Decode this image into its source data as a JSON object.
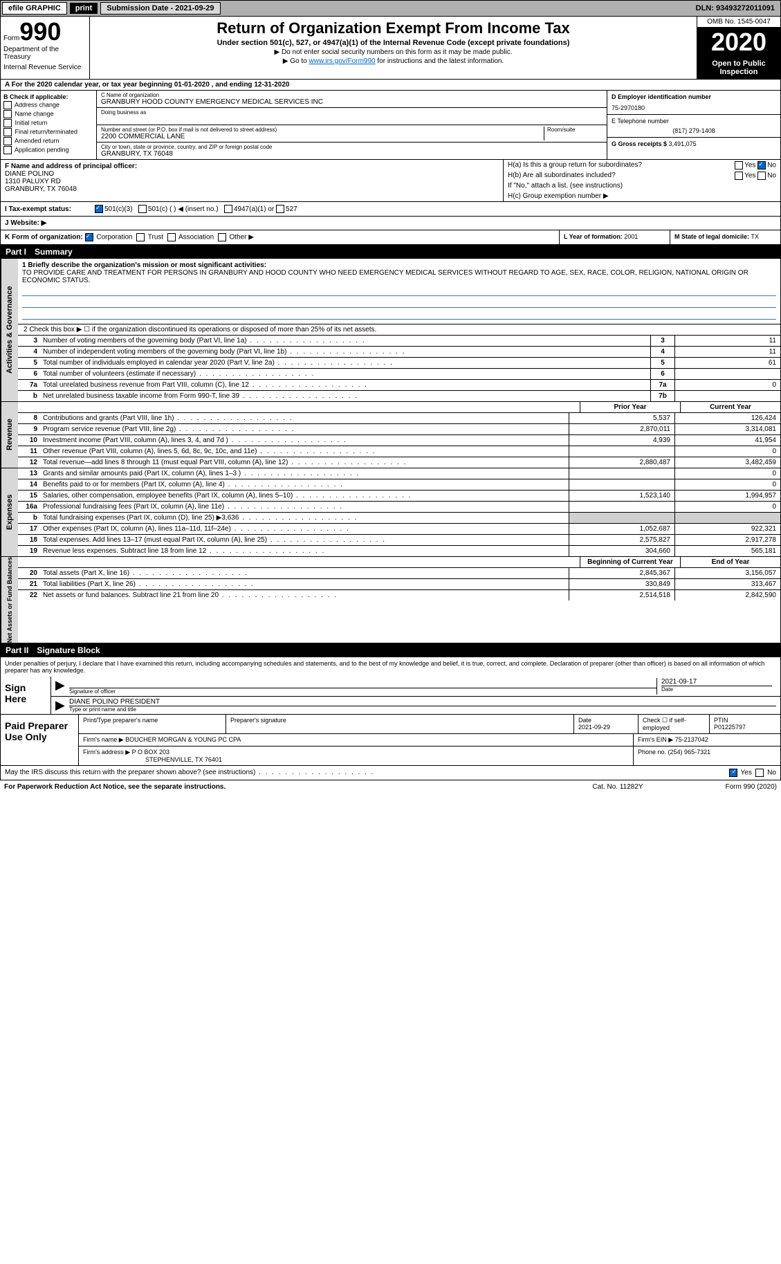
{
  "top": {
    "efile": "efile GRAPHIC",
    "print": "print",
    "submission": "Submission Date - 2021-09-29",
    "dln": "DLN: 93493272011091"
  },
  "header": {
    "form_label": "Form",
    "form_number": "990",
    "dept1": "Department of the Treasury",
    "dept2": "Internal Revenue Service",
    "title": "Return of Organization Exempt From Income Tax",
    "subtitle": "Under section 501(c), 527, or 4947(a)(1) of the Internal Revenue Code (except private foundations)",
    "note1": "▶ Do not enter social security numbers on this form as it may be made public.",
    "note2a": "▶ Go to ",
    "note2_link": "www.irs.gov/Form990",
    "note2b": " for instructions and the latest information.",
    "omb": "OMB No. 1545-0047",
    "year": "2020",
    "inspect": "Open to Public Inspection"
  },
  "line_a": "A For the 2020 calendar year, or tax year beginning 01-01-2020    , and ending 12-31-2020",
  "section_b": {
    "header": "B Check if applicable:",
    "opts": [
      "Address change",
      "Name change",
      "Initial return",
      "Final return/terminated",
      "Amended return",
      "Application pending"
    ],
    "c_name_label": "C Name of organization",
    "c_name": "GRANBURY HOOD COUNTY EMERGENCY MEDICAL SERVICES INC",
    "dba_label": "Doing business as",
    "addr_label": "Number and street (or P.O. box if mail is not delivered to street address)",
    "room_label": "Room/suite",
    "addr": "2200 COMMERCIAL LANE",
    "city_label": "City or town, state or province, country, and ZIP or foreign postal code",
    "city": "GRANBURY, TX  76048",
    "d_label": "D Employer identification number",
    "d_ein": "75-2970180",
    "e_label": "E Telephone number",
    "e_phone": "(817) 279-1408",
    "g_label": "G Gross receipts $ ",
    "g_amt": "3,491,075"
  },
  "fgh": {
    "f_label": "F Name and address of principal officer:",
    "f_name": "DIANE POLINO",
    "f_addr1": "1310 PALUXY RD",
    "f_addr2": "GRANBURY, TX  76048",
    "ha": "H(a)  Is this a group return for subordinates?",
    "ha_yes": "Yes",
    "ha_no": "No",
    "hb": "H(b)  Are all subordinates included?",
    "hb_note": "If \"No,\" attach a list. (see instructions)",
    "hc": "H(c)  Group exemption number ▶"
  },
  "status": {
    "i_label": "I    Tax-exempt status:",
    "opt1": "501(c)(3)",
    "opt2": "501(c) (  ) ◀ (insert no.)",
    "opt3": "4947(a)(1) or",
    "opt4": "527"
  },
  "website": {
    "label": "J   Website: ▶"
  },
  "k_row": {
    "k_label": "K Form of organization:",
    "opts": [
      "Corporation",
      "Trust",
      "Association",
      "Other ▶"
    ],
    "l_label": "L Year of formation: ",
    "l_val": "2001",
    "m_label": "M State of legal domicile: ",
    "m_val": "TX"
  },
  "part1": {
    "header_part": "Part I",
    "header_title": "Summary",
    "q1_label": "1  Briefly describe the organization's mission or most significant activities:",
    "q1_text": "TO PROVIDE CARE AND TREATMENT FOR PERSONS IN GRANBURY AND HOOD COUNTY WHO NEED EMERGENCY MEDICAL SERVICES WITHOUT REGARD TO AGE, SEX, RACE, COLOR, RELIGION, NATIONAL ORIGIN OR ECONOMIC STATUS.",
    "q2": "2  Check this box ▶ ☐  if the organization discontinued its operations or disposed of more than 25% of its net assets.",
    "gov_rows": [
      {
        "n": "3",
        "t": "Number of voting members of the governing body (Part VI, line 1a)",
        "box": "3",
        "v": "11"
      },
      {
        "n": "4",
        "t": "Number of independent voting members of the governing body (Part VI, line 1b)",
        "box": "4",
        "v": "11"
      },
      {
        "n": "5",
        "t": "Total number of individuals employed in calendar year 2020 (Part V, line 2a)",
        "box": "5",
        "v": "61"
      },
      {
        "n": "6",
        "t": "Total number of volunteers (estimate if necessary)",
        "box": "6",
        "v": ""
      },
      {
        "n": "7a",
        "t": "Total unrelated business revenue from Part VIII, column (C), line 12",
        "box": "7a",
        "v": "0"
      },
      {
        "n": "b",
        "t": "Net unrelated business taxable income from Form 990-T, line 39",
        "box": "7b",
        "v": ""
      }
    ],
    "col_prior": "Prior Year",
    "col_current": "Current Year",
    "rev_rows": [
      {
        "n": "8",
        "t": "Contributions and grants (Part VIII, line 1h)",
        "p": "5,537",
        "c": "126,424"
      },
      {
        "n": "9",
        "t": "Program service revenue (Part VIII, line 2g)",
        "p": "2,870,011",
        "c": "3,314,081"
      },
      {
        "n": "10",
        "t": "Investment income (Part VIII, column (A), lines 3, 4, and 7d )",
        "p": "4,939",
        "c": "41,954"
      },
      {
        "n": "11",
        "t": "Other revenue (Part VIII, column (A), lines 5, 6d, 8c, 9c, 10c, and 11e)",
        "p": "",
        "c": "0"
      },
      {
        "n": "12",
        "t": "Total revenue—add lines 8 through 11 (must equal Part VIII, column (A), line 12)",
        "p": "2,880,487",
        "c": "3,482,459"
      }
    ],
    "exp_rows": [
      {
        "n": "13",
        "t": "Grants and similar amounts paid (Part IX, column (A), lines 1–3 )",
        "p": "",
        "c": "0"
      },
      {
        "n": "14",
        "t": "Benefits paid to or for members (Part IX, column (A), line 4)",
        "p": "",
        "c": "0"
      },
      {
        "n": "15",
        "t": "Salaries, other compensation, employee benefits (Part IX, column (A), lines 5–10)",
        "p": "1,523,140",
        "c": "1,994,957"
      },
      {
        "n": "16a",
        "t": "Professional fundraising fees (Part IX, column (A), line 11e)",
        "p": "",
        "c": "0"
      },
      {
        "n": "b",
        "t": "Total fundraising expenses (Part IX, column (D), line 25) ▶3,636",
        "p": "shade",
        "c": "shade"
      },
      {
        "n": "17",
        "t": "Other expenses (Part IX, column (A), lines 11a–11d, 11f–24e)",
        "p": "1,052,687",
        "c": "922,321"
      },
      {
        "n": "18",
        "t": "Total expenses. Add lines 13–17 (must equal Part IX, column (A), line 25)",
        "p": "2,575,827",
        "c": "2,917,278"
      },
      {
        "n": "19",
        "t": "Revenue less expenses. Subtract line 18 from line 12",
        "p": "304,660",
        "c": "565,181"
      }
    ],
    "col_begin": "Beginning of Current Year",
    "col_end": "End of Year",
    "net_rows": [
      {
        "n": "20",
        "t": "Total assets (Part X, line 16)",
        "p": "2,845,367",
        "c": "3,156,057"
      },
      {
        "n": "21",
        "t": "Total liabilities (Part X, line 26)",
        "p": "330,849",
        "c": "313,467"
      },
      {
        "n": "22",
        "t": "Net assets or fund balances. Subtract line 21 from line 20",
        "p": "2,514,518",
        "c": "2,842,590"
      }
    ],
    "side_gov": "Activities & Governance",
    "side_rev": "Revenue",
    "side_exp": "Expenses",
    "side_net": "Net Assets or Fund Balances"
  },
  "part2": {
    "header_part": "Part II",
    "header_title": "Signature Block",
    "decl": "Under penalties of perjury, I declare that I have examined this return, including accompanying schedules and statements, and to the best of my knowledge and belief, it is true, correct, and complete. Declaration of preparer (other than officer) is based on all information of which preparer has any knowledge.",
    "sign_here": "Sign Here",
    "sig_officer": "Signature of officer",
    "sig_date_label": "Date",
    "sig_date": "2021-09-17",
    "sig_name": "DIANE POLINO  PRESIDENT",
    "sig_type": "Type or print name and title",
    "paid_label": "Paid Preparer Use Only",
    "prep_name_label": "Print/Type preparer's name",
    "prep_sig_label": "Preparer's signature",
    "prep_date_label": "Date",
    "prep_date": "2021-09-29",
    "prep_check": "Check ☐ if self-employed",
    "ptin_label": "PTIN",
    "ptin": "P01225797",
    "firm_name_label": "Firm's name    ▶",
    "firm_name": "BOUCHER MORGAN & YOUNG PC CPA",
    "firm_ein_label": "Firm's EIN ▶",
    "firm_ein": "75-2137042",
    "firm_addr_label": "Firm's address ▶",
    "firm_addr1": "P O BOX 203",
    "firm_addr2": "STEPHENVILLE, TX  76401",
    "phone_label": "Phone no. ",
    "phone": "(254) 965-7321",
    "may_irs": "May the IRS discuss this return with the preparer shown above? (see instructions)",
    "yes": "Yes",
    "no": "No"
  },
  "footer": {
    "pra": "For Paperwork Reduction Act Notice, see the separate instructions.",
    "cat": "Cat. No. 11282Y",
    "form": "Form 990 (2020)"
  }
}
